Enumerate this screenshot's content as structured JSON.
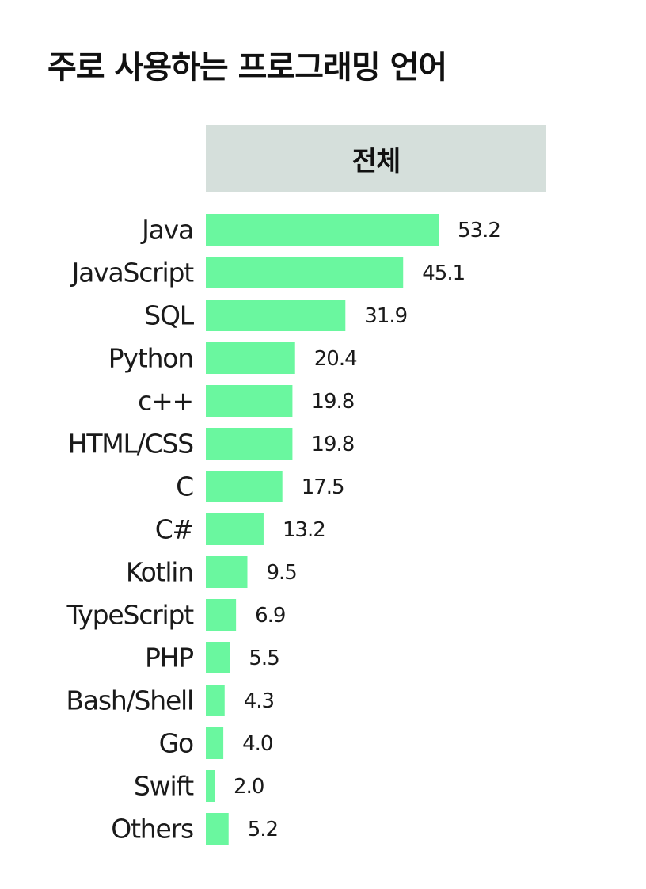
{
  "title": "주로 사용하는 프로그래밍 언어",
  "header": {
    "label": "전체"
  },
  "colors": {
    "bar": "#6af79f",
    "header_bg": "#d5dfdb"
  },
  "chart_data": {
    "type": "bar",
    "orientation": "horizontal",
    "title": "주로 사용하는 프로그래밍 언어",
    "subtitle": "전체",
    "xlabel": "",
    "ylabel": "",
    "grid": false,
    "categories": [
      "Java",
      "JavaScript",
      "SQL",
      "Python",
      "c++",
      "HTML/CSS",
      "C",
      "C#",
      "Kotlin",
      "TypeScript",
      "PHP",
      "Bash/Shell",
      "Go",
      "Swift",
      "Others"
    ],
    "values": [
      53.2,
      45.1,
      31.9,
      20.4,
      19.8,
      19.8,
      17.5,
      13.2,
      9.5,
      6.9,
      5.5,
      4.3,
      4.0,
      2.0,
      5.2
    ],
    "value_labels": [
      "53.2",
      "45.1",
      "31.9",
      "20.4",
      "19.8",
      "19.8",
      "17.5",
      "13.2",
      "9.5",
      "6.9",
      "5.5",
      "4.3",
      "4.0",
      "2.0",
      "5.2"
    ]
  }
}
